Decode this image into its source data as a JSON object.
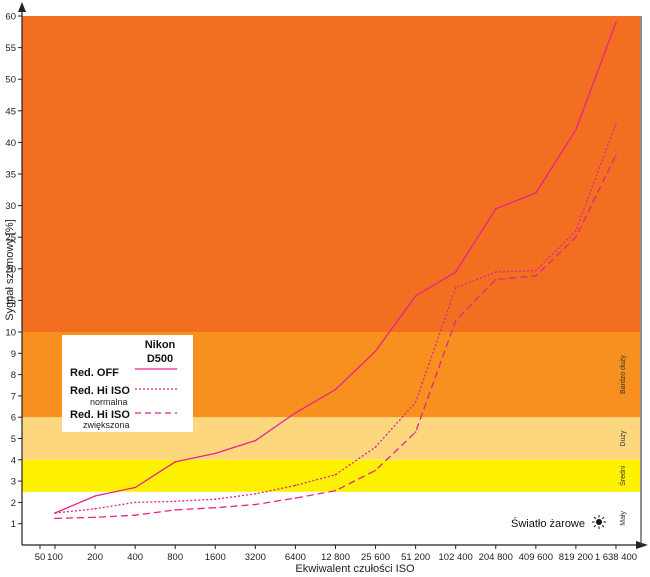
{
  "chart_data": {
    "type": "line",
    "title": "",
    "xlabel": "Ekwiwalent czułości ISO",
    "ylabel": "Sygnał szumowy [%]",
    "x_scale": "log2",
    "x_ticks": [
      "50",
      "100",
      "200",
      "400",
      "800",
      "1600",
      "3200",
      "6400",
      "12 800",
      "25 600",
      "51 200",
      "102 400",
      "204 800",
      "409 600",
      "819 200",
      "1 638 400"
    ],
    "x_values": [
      100,
      200,
      400,
      800,
      1600,
      3200,
      6400,
      12800,
      25600,
      51200,
      102400,
      204800,
      409600,
      819200,
      1638400
    ],
    "y_ticks_lower": [
      1,
      2,
      3,
      4,
      5,
      6,
      7,
      8,
      9,
      10
    ],
    "y_ticks_upper": [
      15,
      20,
      25,
      30,
      35,
      40,
      45,
      50,
      55,
      60
    ],
    "ylim": [
      0,
      60
    ],
    "y_scale_note": "piecewise: 0-10 expanded, 10-60 compressed",
    "series": [
      {
        "name": "Red. OFF",
        "style": "solid",
        "values": [
          1.5,
          2.3,
          2.7,
          3.9,
          4.3,
          4.9,
          6.2,
          7.3,
          9.1,
          15.7,
          19.5,
          29.5,
          32,
          42,
          59
        ]
      },
      {
        "name": "Red. Hi ISO normalna",
        "style": "dotted",
        "values": [
          1.5,
          1.7,
          2.0,
          2.05,
          2.15,
          2.4,
          2.8,
          3.3,
          4.6,
          6.7,
          17,
          19.5,
          19.7,
          26,
          43
        ]
      },
      {
        "name": "Red. Hi ISO zwiększona",
        "style": "dashed",
        "values": [
          1.25,
          1.3,
          1.4,
          1.65,
          1.75,
          1.9,
          2.2,
          2.55,
          3.5,
          5.3,
          11.8,
          18.3,
          18.9,
          25,
          38
        ]
      }
    ],
    "bands": [
      {
        "label": "Mały",
        "from": 0,
        "to": 2.5,
        "color": "#ffffff"
      },
      {
        "label": "Średni",
        "from": 2.5,
        "to": 4,
        "color": "#fff200"
      },
      {
        "label": "Duży",
        "from": 4,
        "to": 6,
        "color": "#fdd77e"
      },
      {
        "label": "Bardzo duży",
        "from": 6,
        "to": 10,
        "color": "#f7901e"
      },
      {
        "label": "",
        "from": 10,
        "to": 60,
        "color": "#f26f22"
      }
    ],
    "line_color": "#e8238a",
    "legend": {
      "title_line1": "Nikon",
      "title_line2": "D500",
      "entries": [
        {
          "label": "Red. OFF",
          "sub": ""
        },
        {
          "label": "Red. Hi ISO",
          "sub": "normalna"
        },
        {
          "label": "Red. Hi ISO",
          "sub": "zwiększona"
        }
      ],
      "placement": "center-left"
    },
    "annotation": "Światło żarowe",
    "annotation_icon": "bulb-light-icon",
    "grid": false
  }
}
